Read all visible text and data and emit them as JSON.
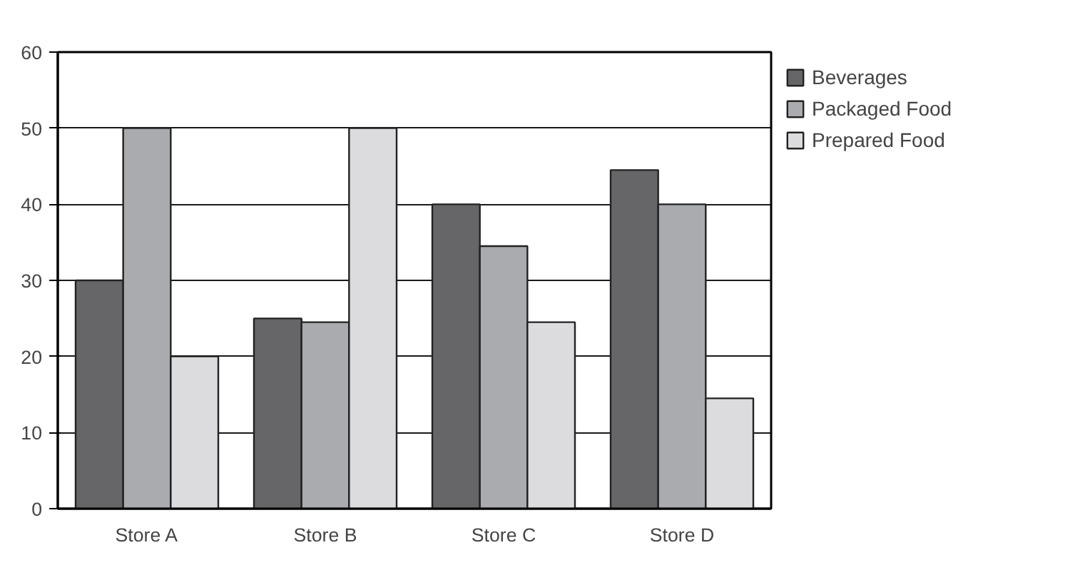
{
  "chart_data": {
    "type": "bar",
    "categories": [
      "Store A",
      "Store B",
      "Store C",
      "Store D"
    ],
    "series": [
      {
        "name": "Beverages",
        "color": "#666668",
        "values": [
          30,
          25,
          40,
          44.5
        ]
      },
      {
        "name": "Packaged Food",
        "color": "#a9abae",
        "values": [
          50,
          24.5,
          34.5,
          40
        ]
      },
      {
        "name": "Prepared Food",
        "color": "#dcdcde",
        "values": [
          20,
          50,
          24.5,
          14.5
        ]
      }
    ],
    "ylim": [
      0,
      60
    ],
    "yticks": [
      0,
      10,
      20,
      30,
      40,
      50,
      60
    ],
    "grid": "y",
    "legend": "right"
  }
}
